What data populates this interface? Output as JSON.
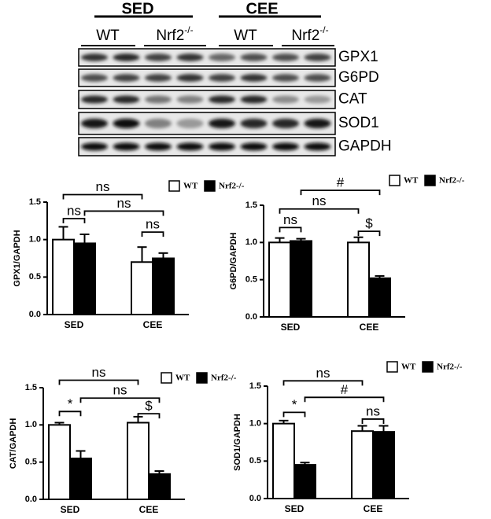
{
  "blot": {
    "groups": [
      "SED",
      "CEE"
    ],
    "lanes": [
      {
        "text": "WT"
      },
      {
        "text": "Nrf2",
        "sup": "-/-"
      },
      {
        "text": "WT"
      },
      {
        "text": "Nrf2",
        "sup": "-/-"
      }
    ],
    "proteins": [
      "GPX1",
      "G6PD",
      "CAT",
      "SOD1",
      "GAPDH"
    ]
  },
  "chart_data": [
    {
      "type": "bar",
      "ylabel": "GPX1/GAPDH",
      "categories": [
        "SED",
        "CEE"
      ],
      "series": [
        {
          "name": "WT",
          "color": "#ffffff",
          "values": [
            1.0,
            0.7
          ],
          "errors": [
            0.17,
            0.2
          ]
        },
        {
          "name": "Nrf2-/-",
          "color": "#000000",
          "values": [
            0.95,
            0.75
          ],
          "errors": [
            0.12,
            0.07
          ]
        }
      ],
      "ylim": [
        0,
        1.5
      ],
      "yticks": [
        {
          "value": 0,
          "label": "0.0"
        },
        {
          "value": 0.5,
          "label": "0.5"
        },
        {
          "value": 1,
          "label": "1.0"
        },
        {
          "value": 1.5,
          "label": "1.5"
        }
      ],
      "annotations": [
        "ns",
        "ns",
        "ns",
        "ns"
      ]
    },
    {
      "type": "bar",
      "ylabel": "G6PD/GAPDH",
      "categories": [
        "SED",
        "CEE"
      ],
      "series": [
        {
          "name": "WT",
          "color": "#ffffff",
          "values": [
            1.0,
            1.0
          ],
          "errors": [
            0.06,
            0.07
          ]
        },
        {
          "name": "Nrf2-/-",
          "color": "#000000",
          "values": [
            1.02,
            0.52
          ],
          "errors": [
            0.03,
            0.03
          ]
        }
      ],
      "ylim": [
        0,
        1.5
      ],
      "yticks": [
        {
          "value": 0,
          "label": "0.0"
        },
        {
          "value": 0.5,
          "label": "0.5"
        },
        {
          "value": 1,
          "label": "1.0"
        },
        {
          "value": 1.5,
          "label": "1.5"
        }
      ],
      "annotations": [
        "#",
        "ns",
        "ns",
        "$"
      ]
    },
    {
      "type": "bar",
      "ylabel": "CAT/GAPDH",
      "categories": [
        "SED",
        "CEE"
      ],
      "series": [
        {
          "name": "WT",
          "color": "#ffffff",
          "values": [
            1.0,
            1.03
          ],
          "errors": [
            0.03,
            0.08
          ]
        },
        {
          "name": "Nrf2-/-",
          "color": "#000000",
          "values": [
            0.55,
            0.34
          ],
          "errors": [
            0.1,
            0.04
          ]
        }
      ],
      "ylim": [
        0,
        1.5
      ],
      "yticks": [
        {
          "value": 0,
          "label": "0.0"
        },
        {
          "value": 0.5,
          "label": "0.5"
        },
        {
          "value": 1,
          "label": "1.0"
        },
        {
          "value": 1.5,
          "label": "1.5"
        }
      ],
      "annotations": [
        "ns",
        "*",
        "ns",
        "$"
      ]
    },
    {
      "type": "bar",
      "ylabel": "SOD1/GAPDH",
      "categories": [
        "SED",
        "CEE"
      ],
      "series": [
        {
          "name": "WT",
          "color": "#ffffff",
          "values": [
            1.0,
            0.9
          ],
          "errors": [
            0.04,
            0.07
          ]
        },
        {
          "name": "Nrf2-/-",
          "color": "#000000",
          "values": [
            0.45,
            0.89
          ],
          "errors": [
            0.03,
            0.08
          ]
        }
      ],
      "ylim": [
        0,
        1.5
      ],
      "yticks": [
        {
          "value": 0,
          "label": "0.0"
        },
        {
          "value": 0.5,
          "label": "0.5"
        },
        {
          "value": 1,
          "label": "1.0"
        },
        {
          "value": 1.5,
          "label": "1.5"
        }
      ],
      "annotations": [
        "ns",
        "*",
        "#",
        "ns"
      ]
    }
  ]
}
